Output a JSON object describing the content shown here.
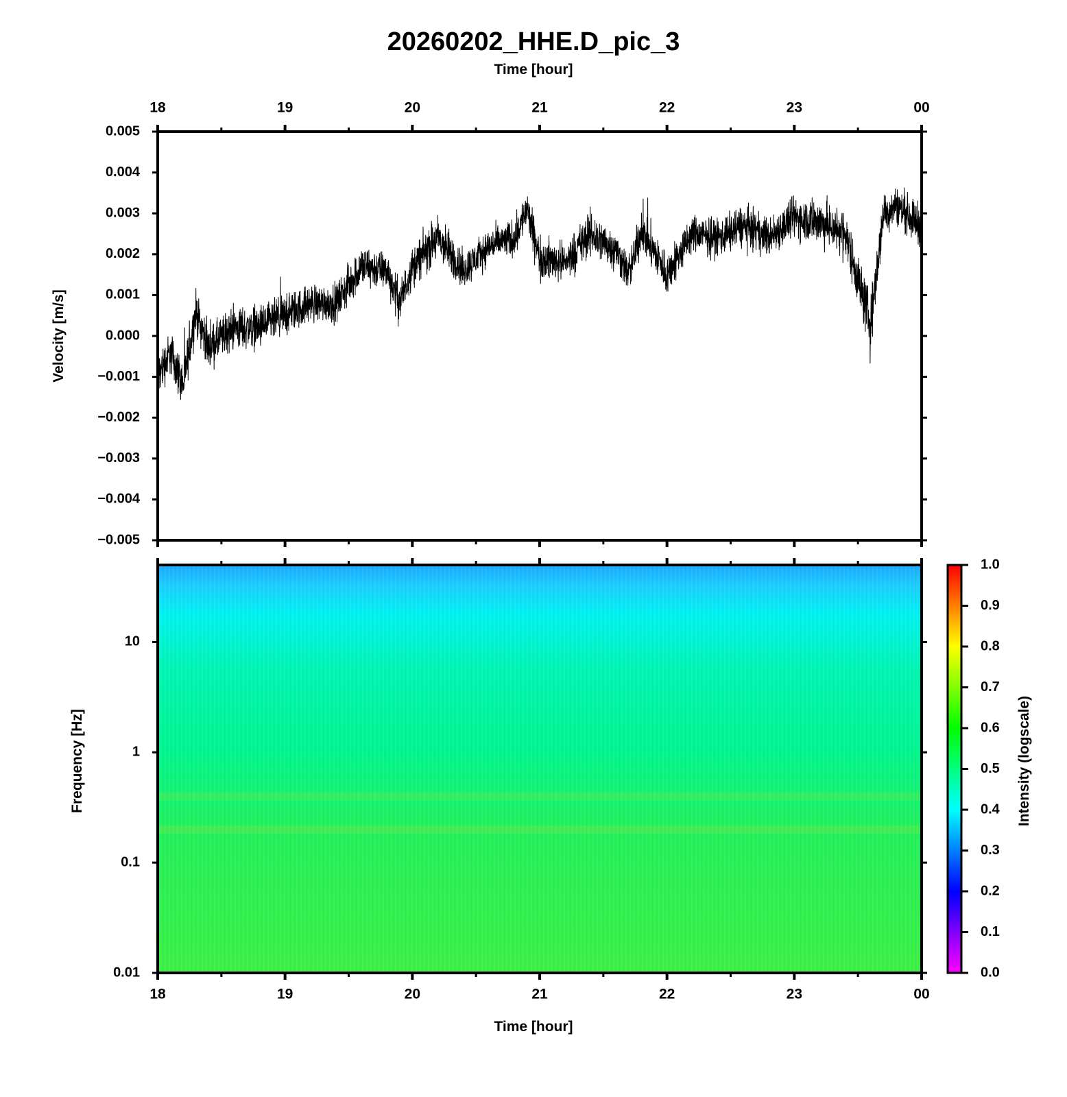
{
  "chart_data": [
    {
      "type": "line",
      "title": "20260202_HHE.D_pic_3",
      "xlabel": "Time [hour]",
      "ylabel": "Velocity [m/s]",
      "x_ticks": [
        "18",
        "19",
        "20",
        "21",
        "22",
        "23",
        "00"
      ],
      "x_range_hours": [
        18,
        24
      ],
      "ylim": [
        -0.005,
        0.005
      ],
      "y_ticks": [
        "0.005",
        "0.004",
        "0.003",
        "0.002",
        "0.001",
        "0.000",
        "−0.001",
        "−0.002",
        "−0.003",
        "−0.004",
        "−0.005"
      ],
      "series": [
        {
          "color": "#000000",
          "envelope_hours": [
            18.0,
            18.1,
            18.2,
            18.3,
            18.4,
            18.6,
            18.8,
            19.0,
            19.2,
            19.4,
            19.6,
            19.8,
            19.9,
            20.0,
            20.2,
            20.4,
            20.6,
            20.8,
            20.9,
            21.0,
            21.2,
            21.4,
            21.6,
            21.7,
            21.8,
            22.0,
            22.2,
            22.4,
            22.6,
            22.8,
            23.0,
            23.2,
            23.4,
            23.5,
            23.6,
            23.7,
            23.8,
            24.0
          ],
          "center": [
            -0.001,
            -0.0004,
            -0.0012,
            0.0006,
            -0.0003,
            0.0002,
            0.0002,
            0.0005,
            0.0008,
            0.0008,
            0.0017,
            0.0016,
            0.0008,
            0.0017,
            0.0024,
            0.0016,
            0.0022,
            0.0024,
            0.0031,
            0.0019,
            0.0018,
            0.0025,
            0.0021,
            0.0015,
            0.0026,
            0.0015,
            0.0025,
            0.0024,
            0.0027,
            0.0024,
            0.0029,
            0.0028,
            0.0025,
            0.0014,
            0.0003,
            0.003,
            0.0032,
            0.0027
          ],
          "half_range": [
            0.0011,
            0.001,
            0.0011,
            0.001,
            0.001,
            0.001,
            0.001,
            0.001,
            0.0009,
            0.0009,
            0.001,
            0.0009,
            0.001,
            0.0009,
            0.0011,
            0.0009,
            0.0008,
            0.0009,
            0.0009,
            0.001,
            0.0009,
            0.0011,
            0.0009,
            0.0009,
            0.001,
            0.001,
            0.0009,
            0.0009,
            0.001,
            0.0009,
            0.001,
            0.0011,
            0.0011,
            0.0012,
            0.0013,
            0.001,
            0.0009,
            0.001
          ]
        }
      ]
    },
    {
      "type": "heatmap",
      "xlabel": "Time [hour]",
      "ylabel": "Frequency [Hz]",
      "x_ticks": [
        "18",
        "19",
        "20",
        "21",
        "22",
        "23",
        "00"
      ],
      "y_scale": "log",
      "ylim": [
        0.01,
        50
      ],
      "y_ticks": [
        "10",
        "1",
        "0.1",
        "0.01"
      ],
      "colorbar": {
        "label": "Intensity (logscale)",
        "range": [
          0.0,
          1.0
        ],
        "ticks": [
          "1.0",
          "0.9",
          "0.8",
          "0.7",
          "0.6",
          "0.5",
          "0.4",
          "0.3",
          "0.2",
          "0.1",
          "0.0"
        ],
        "colors": [
          "#ff00ff",
          "#0000ff",
          "#00ffff",
          "#00ff00",
          "#ffff00",
          "#ff0000"
        ]
      },
      "intensity_by_frequency": [
        {
          "freq": 50,
          "intensity": 0.38
        },
        {
          "freq": 30,
          "intensity": 0.42
        },
        {
          "freq": 10,
          "intensity": 0.47
        },
        {
          "freq": 1,
          "intensity": 0.53
        },
        {
          "freq": 0.4,
          "intensity": 0.57
        },
        {
          "freq": 0.2,
          "intensity": 0.58
        },
        {
          "freq": 0.1,
          "intensity": 0.56
        },
        {
          "freq": 0.01,
          "intensity": 0.6
        }
      ]
    }
  ]
}
